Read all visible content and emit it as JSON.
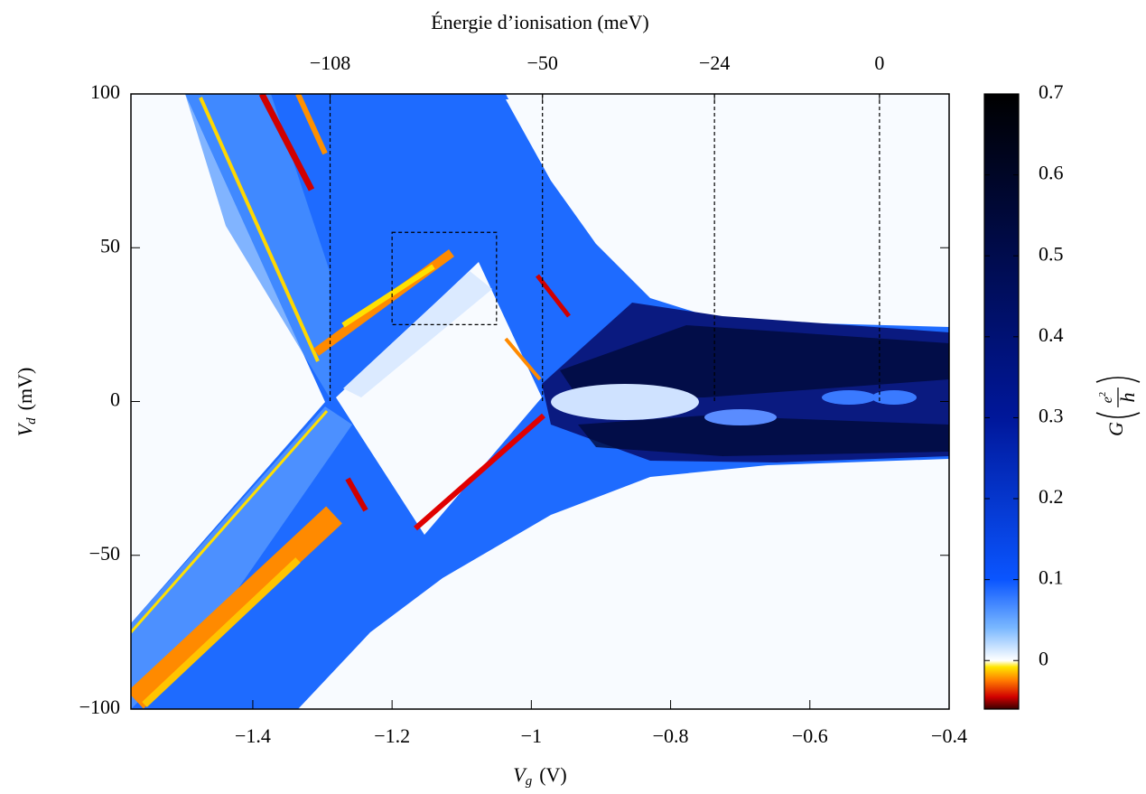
{
  "chart_data": {
    "type": "heatmap",
    "xlabel": {
      "symbol": "V",
      "subscript": "g",
      "unit": "(V)"
    },
    "ylabel": {
      "symbol": "V",
      "subscript": "d",
      "unit": "(mV)"
    },
    "x2label": "Énergie d’ionisation (meV)",
    "xlim": [
      -1.575,
      -0.4
    ],
    "xticks": [
      {
        "value": -1.4,
        "label": "−1.4"
      },
      {
        "value": -1.2,
        "label": "−1.2"
      },
      {
        "value": -1,
        "label": "−1"
      },
      {
        "value": -0.8,
        "label": "−0.8"
      },
      {
        "value": -0.6,
        "label": "−0.6"
      },
      {
        "value": -0.4,
        "label": "−0.4"
      }
    ],
    "ylim": [
      -100,
      100
    ],
    "yticks": [
      {
        "value": -100,
        "label": "−100"
      },
      {
        "value": -50,
        "label": "−50"
      },
      0,
      50,
      100
    ],
    "x2ticks": [
      {
        "value": -108,
        "label": "−108"
      },
      {
        "value": -50,
        "label": "−50"
      },
      {
        "value": -24,
        "label": "−24"
      },
      0
    ],
    "x2tick_vg": [
      -1.289,
      -0.984,
      -0.737,
      -0.5
    ],
    "box": {
      "x": [
        -1.2,
        -1.05
      ],
      "y": [
        25,
        55
      ]
    },
    "zlabel": {
      "symbol": "G",
      "numerator": "e",
      "exponent": "2",
      "denominator": "h"
    },
    "zlim": [
      -0.06,
      0.7
    ],
    "zticks": [
      0,
      0.1,
      0.2,
      0.3,
      0.4,
      0.5,
      0.6,
      0.7
    ],
    "colormap": [
      {
        "value": -0.06,
        "color": "#3a0000"
      },
      {
        "value": -0.045,
        "color": "#d00000"
      },
      {
        "value": -0.025,
        "color": "#ff7a00"
      },
      {
        "value": -0.008,
        "color": "#ffe600"
      },
      {
        "value": 0,
        "color": "#ffffff"
      },
      {
        "value": 0.04,
        "color": "#7ab8ff"
      },
      {
        "value": 0.1,
        "color": "#0a55ff"
      },
      {
        "value": 0.3,
        "color": "#00179a"
      },
      {
        "value": 0.7,
        "color": "#000000"
      }
    ]
  }
}
